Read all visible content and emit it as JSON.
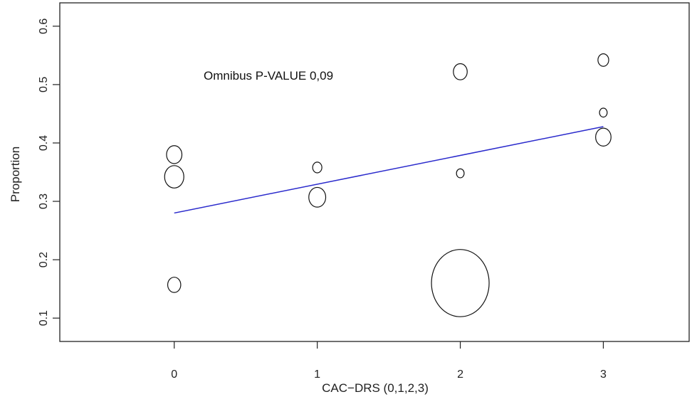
{
  "chart_data": {
    "type": "scatter",
    "title": "",
    "xlabel": "CAC−DRS (0,1,2,3)",
    "ylabel": "Proportion",
    "xlim": [
      -0.8,
      3.6
    ],
    "ylim": [
      0.06,
      0.64
    ],
    "x_ticks": [
      0,
      1,
      2,
      3
    ],
    "x_tick_labels": [
      "0",
      "1",
      "2",
      "3"
    ],
    "y_ticks": [
      0.1,
      0.2,
      0.3,
      0.4,
      0.5,
      0.6
    ],
    "y_tick_labels": [
      "0.1",
      "0.2",
      "0.3",
      "0.4",
      "0.5",
      "0.6"
    ],
    "grid": false,
    "legend": "none",
    "annotation": {
      "text": "Omnibus P-VALUE 0,09"
    },
    "points": [
      {
        "x": 0,
        "y": 0.38,
        "size": 2
      },
      {
        "x": 0,
        "y": 0.342,
        "size": 2.5
      },
      {
        "x": 0,
        "y": 0.157,
        "size": 1.7
      },
      {
        "x": 1,
        "y": 0.358,
        "size": 1.2
      },
      {
        "x": 1,
        "y": 0.307,
        "size": 2.2
      },
      {
        "x": 2,
        "y": 0.522,
        "size": 1.8
      },
      {
        "x": 2,
        "y": 0.348,
        "size": 1
      },
      {
        "x": 2,
        "y": 0.16,
        "size": 7.5
      },
      {
        "x": 3,
        "y": 0.542,
        "size": 1.4
      },
      {
        "x": 3,
        "y": 0.452,
        "size": 1
      },
      {
        "x": 3,
        "y": 0.41,
        "size": 2
      }
    ],
    "trend_line": {
      "x": [
        0,
        3
      ],
      "y": [
        0.28,
        0.428
      ],
      "color": "#2a2acc"
    }
  }
}
